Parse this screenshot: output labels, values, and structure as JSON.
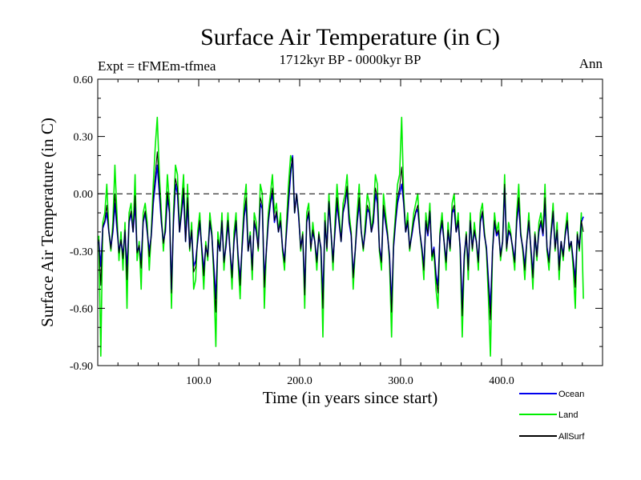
{
  "chart_data": {
    "type": "line",
    "title": "Surface Air Temperature (in C)",
    "subtitle": "1712kyr BP - 0000kyr BP",
    "left_label": "Expt = tFMEm-tfmea",
    "right_label": "Ann",
    "xlabel": "Time (in years since start)",
    "ylabel": "Surface Air Temperature (in C)",
    "xlim": [
      0,
      500
    ],
    "ylim": [
      -0.9,
      0.6
    ],
    "x_ticks": [
      100,
      200,
      300,
      400
    ],
    "x_tick_labels": [
      "100.0",
      "200.0",
      "300.0",
      "400.0"
    ],
    "y_ticks": [
      0.6,
      0.3,
      0.0,
      -0.3,
      -0.6,
      -0.9
    ],
    "y_tick_labels": [
      "0.60",
      "0.30",
      "0.00",
      "-0.30",
      "-0.60",
      "-0.90"
    ],
    "reference_line": {
      "y": 0.0,
      "style": "dashed"
    },
    "legend_position": "bottom-right",
    "x_start": 1,
    "x_step": 2,
    "series": [
      {
        "name": "Land",
        "color": "#00ee00",
        "values": [
          -0.22,
          -0.85,
          -0.15,
          -0.1,
          0.05,
          -0.2,
          -0.3,
          -0.15,
          0.15,
          -0.1,
          -0.35,
          -0.2,
          -0.4,
          -0.15,
          -0.6,
          -0.1,
          -0.05,
          -0.2,
          0.1,
          -0.35,
          -0.25,
          -0.5,
          -0.1,
          -0.05,
          -0.15,
          -0.4,
          -0.2,
          0.05,
          0.25,
          0.4,
          0.1,
          -0.1,
          -0.3,
          -0.15,
          0.1,
          -0.05,
          -0.6,
          -0.1,
          0.15,
          0.1,
          -0.2,
          -0.05,
          0.1,
          -0.25,
          0.05,
          -0.3,
          -0.15,
          -0.5,
          -0.45,
          -0.2,
          -0.1,
          -0.3,
          -0.5,
          -0.25,
          -0.35,
          -0.1,
          -0.2,
          -0.45,
          -0.8,
          -0.2,
          -0.3,
          -0.1,
          -0.4,
          -0.25,
          -0.1,
          -0.3,
          -0.5,
          -0.2,
          -0.1,
          -0.35,
          -0.55,
          -0.25,
          -0.05,
          0.05,
          -0.3,
          -0.2,
          -0.45,
          -0.1,
          -0.15,
          -0.3,
          0.05,
          0.0,
          -0.6,
          -0.3,
          -0.1,
          0.0,
          0.1,
          -0.1,
          -0.05,
          -0.2,
          -0.1,
          -0.3,
          -0.4,
          -0.15,
          0.05,
          0.2,
          0.15,
          -0.1,
          0.0,
          -0.1,
          -0.3,
          -0.2,
          -0.6,
          -0.1,
          -0.05,
          -0.3,
          -0.15,
          -0.25,
          -0.4,
          -0.2,
          -0.3,
          -0.75,
          -0.1,
          -0.3,
          0.0,
          -0.2,
          -0.4,
          -0.15,
          0.05,
          -0.1,
          -0.25,
          -0.05,
          0.0,
          0.1,
          -0.1,
          -0.2,
          -0.5,
          -0.3,
          -0.1,
          0.05,
          -0.2,
          -0.3,
          -0.15,
          0.0,
          -0.05,
          -0.2,
          -0.1,
          0.1,
          0.05,
          -0.3,
          -0.4,
          0.0,
          -0.1,
          -0.2,
          -0.35,
          -0.75,
          -0.25,
          -0.1,
          0.05,
          0.1,
          0.4,
          0.0,
          -0.2,
          -0.1,
          -0.3,
          -0.2,
          -0.1,
          -0.05,
          0.0,
          -0.2,
          -0.3,
          -0.45,
          -0.1,
          -0.2,
          -0.05,
          -0.35,
          -0.3,
          -0.5,
          -0.6,
          -0.2,
          -0.1,
          -0.25,
          -0.4,
          -0.15,
          -0.3,
          -0.05,
          0.0,
          -0.2,
          -0.1,
          -0.3,
          -0.75,
          -0.35,
          -0.2,
          -0.45,
          -0.1,
          -0.3,
          -0.15,
          -0.25,
          -0.4,
          -0.1,
          -0.05,
          -0.2,
          -0.3,
          -0.55,
          -0.85,
          -0.3,
          -0.1,
          -0.2,
          -0.15,
          -0.35,
          -0.25,
          0.1,
          -0.3,
          -0.15,
          -0.2,
          -0.3,
          -0.4,
          -0.1,
          0.05,
          -0.2,
          -0.3,
          -0.45,
          -0.25,
          -0.1,
          -0.3,
          -0.5,
          -0.2,
          -0.35,
          -0.15,
          -0.1,
          -0.2,
          0.05,
          -0.3,
          -0.4,
          -0.2,
          -0.05,
          -0.3,
          -0.15,
          -0.45,
          -0.25,
          -0.35,
          -0.2,
          -0.1,
          -0.3,
          -0.25,
          -0.4,
          -0.6,
          -0.2,
          -0.3,
          -0.1,
          -0.55
        ]
      },
      {
        "name": "Ocean",
        "color": "#0000ee",
        "values": [
          -0.25,
          -0.38,
          -0.18,
          -0.15,
          -0.1,
          -0.2,
          -0.28,
          -0.2,
          -0.05,
          -0.18,
          -0.3,
          -0.25,
          -0.32,
          -0.2,
          -0.4,
          -0.15,
          -0.1,
          -0.2,
          -0.05,
          -0.3,
          -0.28,
          -0.35,
          -0.15,
          -0.1,
          -0.2,
          -0.3,
          -0.22,
          -0.05,
          0.05,
          0.15,
          0.0,
          -0.15,
          -0.25,
          -0.2,
          -0.02,
          -0.1,
          -0.5,
          -0.15,
          0.05,
          0.0,
          -0.2,
          -0.1,
          0.0,
          -0.25,
          -0.05,
          -0.28,
          -0.2,
          -0.38,
          -0.35,
          -0.25,
          -0.15,
          -0.28,
          -0.4,
          -0.28,
          -0.32,
          -0.15,
          -0.22,
          -0.38,
          -0.55,
          -0.25,
          -0.3,
          -0.15,
          -0.35,
          -0.28,
          -0.15,
          -0.3,
          -0.42,
          -0.25,
          -0.15,
          -0.32,
          -0.45,
          -0.28,
          -0.12,
          -0.05,
          -0.3,
          -0.22,
          -0.38,
          -0.15,
          -0.2,
          -0.28,
          -0.05,
          -0.08,
          -0.45,
          -0.3,
          -0.15,
          -0.05,
          0.0,
          -0.15,
          -0.1,
          -0.2,
          -0.15,
          -0.28,
          -0.35,
          -0.2,
          -0.05,
          0.1,
          0.2,
          -0.1,
          0.0,
          -0.12,
          -0.28,
          -0.22,
          -0.5,
          -0.15,
          -0.1,
          -0.28,
          -0.2,
          -0.25,
          -0.35,
          -0.22,
          -0.28,
          -0.55,
          -0.15,
          -0.28,
          -0.05,
          -0.2,
          -0.35,
          -0.2,
          -0.05,
          -0.15,
          -0.25,
          -0.1,
          -0.05,
          0.02,
          -0.15,
          -0.22,
          -0.42,
          -0.3,
          -0.15,
          -0.05,
          -0.2,
          -0.28,
          -0.2,
          -0.08,
          -0.1,
          -0.2,
          -0.15,
          0.0,
          -0.05,
          -0.28,
          -0.35,
          -0.08,
          -0.15,
          -0.22,
          -0.32,
          -0.58,
          -0.28,
          -0.15,
          -0.05,
          0.0,
          0.05,
          -0.05,
          -0.2,
          -0.15,
          -0.28,
          -0.22,
          -0.15,
          -0.1,
          -0.08,
          -0.2,
          -0.28,
          -0.38,
          -0.15,
          -0.22,
          -0.1,
          -0.32,
          -0.28,
          -0.42,
          -0.48,
          -0.22,
          -0.15,
          -0.25,
          -0.35,
          -0.2,
          -0.28,
          -0.1,
          -0.08,
          -0.2,
          -0.15,
          -0.28,
          -0.6,
          -0.32,
          -0.22,
          -0.38,
          -0.15,
          -0.28,
          -0.2,
          -0.25,
          -0.35,
          -0.15,
          -0.1,
          -0.22,
          -0.28,
          -0.45,
          -0.6,
          -0.3,
          -0.15,
          -0.22,
          -0.2,
          -0.32,
          -0.25,
          0.03,
          -0.28,
          -0.2,
          -0.22,
          -0.28,
          -0.35,
          -0.15,
          -0.05,
          -0.22,
          -0.28,
          -0.38,
          -0.25,
          -0.15,
          -0.28,
          -0.42,
          -0.22,
          -0.32,
          -0.2,
          -0.15,
          -0.22,
          -0.05,
          -0.28,
          -0.35,
          -0.22,
          -0.1,
          -0.28,
          -0.2,
          -0.38,
          -0.25,
          -0.32,
          -0.22,
          -0.15,
          -0.28,
          -0.25,
          -0.35,
          -0.45,
          -0.22,
          -0.28,
          -0.15,
          -0.12
        ]
      },
      {
        "name": "AllSurf",
        "color": "#000000",
        "values": [
          -0.24,
          -0.48,
          -0.17,
          -0.14,
          -0.06,
          -0.2,
          -0.29,
          -0.18,
          0.0,
          -0.16,
          -0.31,
          -0.24,
          -0.34,
          -0.19,
          -0.45,
          -0.14,
          -0.09,
          -0.2,
          -0.01,
          -0.31,
          -0.27,
          -0.39,
          -0.14,
          -0.09,
          -0.19,
          -0.33,
          -0.22,
          -0.02,
          0.1,
          0.22,
          0.03,
          -0.14,
          -0.26,
          -0.19,
          0.01,
          -0.09,
          -0.52,
          -0.14,
          0.08,
          0.03,
          -0.2,
          -0.09,
          0.03,
          -0.25,
          -0.02,
          -0.29,
          -0.19,
          -0.41,
          -0.38,
          -0.24,
          -0.14,
          -0.29,
          -0.43,
          -0.27,
          -0.33,
          -0.14,
          -0.22,
          -0.4,
          -0.62,
          -0.24,
          -0.3,
          -0.14,
          -0.36,
          -0.27,
          -0.14,
          -0.3,
          -0.44,
          -0.24,
          -0.14,
          -0.33,
          -0.48,
          -0.27,
          -0.1,
          -0.02,
          -0.3,
          -0.22,
          -0.4,
          -0.14,
          -0.19,
          -0.29,
          -0.02,
          -0.06,
          -0.49,
          -0.3,
          -0.14,
          -0.04,
          0.03,
          -0.14,
          -0.09,
          -0.2,
          -0.14,
          -0.29,
          -0.36,
          -0.19,
          -0.02,
          0.13,
          0.19,
          -0.1,
          0.0,
          -0.11,
          -0.29,
          -0.21,
          -0.53,
          -0.14,
          -0.09,
          -0.29,
          -0.19,
          -0.25,
          -0.36,
          -0.21,
          -0.29,
          -0.6,
          -0.14,
          -0.29,
          -0.04,
          -0.2,
          -0.36,
          -0.19,
          -0.02,
          -0.14,
          -0.25,
          -0.09,
          -0.04,
          0.04,
          -0.14,
          -0.21,
          -0.44,
          -0.3,
          -0.14,
          -0.02,
          -0.2,
          -0.29,
          -0.19,
          -0.06,
          -0.09,
          -0.2,
          -0.14,
          0.03,
          -0.02,
          -0.29,
          -0.36,
          -0.06,
          -0.14,
          -0.21,
          -0.33,
          -0.62,
          -0.27,
          -0.14,
          -0.02,
          0.03,
          0.14,
          -0.04,
          -0.2,
          -0.14,
          -0.29,
          -0.21,
          -0.14,
          -0.09,
          -0.06,
          -0.2,
          -0.29,
          -0.4,
          -0.14,
          -0.21,
          -0.09,
          -0.33,
          -0.29,
          -0.44,
          -0.52,
          -0.21,
          -0.14,
          -0.25,
          -0.36,
          -0.19,
          -0.29,
          -0.09,
          -0.06,
          -0.2,
          -0.14,
          -0.29,
          -0.64,
          -0.33,
          -0.21,
          -0.4,
          -0.14,
          -0.29,
          -0.19,
          -0.25,
          -0.36,
          -0.14,
          -0.09,
          -0.21,
          -0.29,
          -0.48,
          -0.66,
          -0.3,
          -0.14,
          -0.21,
          -0.19,
          -0.33,
          -0.25,
          0.05,
          -0.29,
          -0.19,
          -0.21,
          -0.29,
          -0.36,
          -0.14,
          -0.02,
          -0.21,
          -0.29,
          -0.4,
          -0.25,
          -0.14,
          -0.29,
          -0.44,
          -0.21,
          -0.33,
          -0.19,
          -0.14,
          -0.21,
          -0.02,
          -0.29,
          -0.36,
          -0.21,
          -0.09,
          -0.29,
          -0.19,
          -0.4,
          -0.25,
          -0.33,
          -0.21,
          -0.14,
          -0.29,
          -0.25,
          -0.36,
          -0.49,
          -0.21,
          -0.29,
          -0.14,
          -0.2
        ]
      }
    ]
  }
}
